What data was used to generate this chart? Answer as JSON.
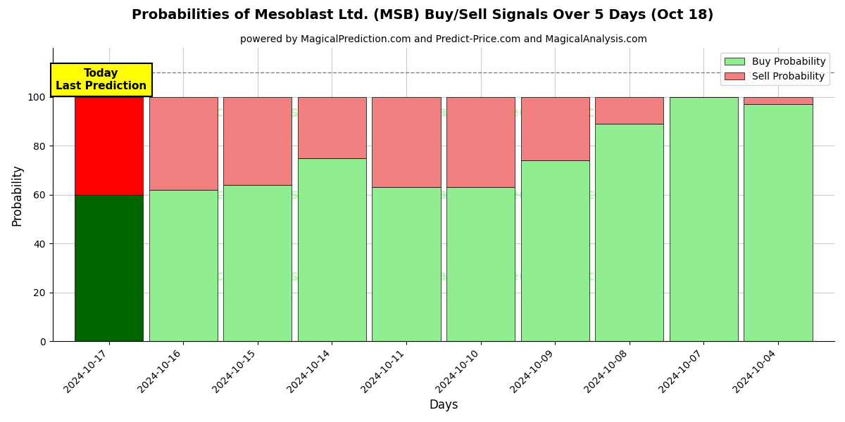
{
  "title": "Probabilities of Mesoblast Ltd. (MSB) Buy/Sell Signals Over 5 Days (Oct 18)",
  "subtitle": "powered by MagicalPrediction.com and Predict-Price.com and MagicalAnalysis.com",
  "xlabel": "Days",
  "ylabel": "Probability",
  "categories": [
    "2024-10-17",
    "2024-10-16",
    "2024-10-15",
    "2024-10-14",
    "2024-10-11",
    "2024-10-10",
    "2024-10-09",
    "2024-10-08",
    "2024-10-07",
    "2024-10-04"
  ],
  "buy_values": [
    60,
    62,
    64,
    75,
    63,
    63,
    74,
    89,
    100,
    97
  ],
  "sell_values": [
    40,
    38,
    36,
    25,
    37,
    37,
    26,
    11,
    0,
    3
  ],
  "today_buy_color": "#006400",
  "today_sell_color": "#FF0000",
  "buy_color": "#90EE90",
  "sell_color": "#F08080",
  "today_annotation": "Today\nLast Prediction",
  "today_annotation_bg": "#FFFF00",
  "dashed_line_y": 110,
  "ylim": [
    0,
    120
  ],
  "yticks": [
    0,
    20,
    40,
    60,
    80,
    100
  ],
  "legend_buy_label": "Buy Probability",
  "legend_sell_label": "Sell Probability",
  "watermark_color": "#90EE90",
  "background_color": "#ffffff",
  "grid_color": "#cccccc",
  "bar_width": 0.92
}
